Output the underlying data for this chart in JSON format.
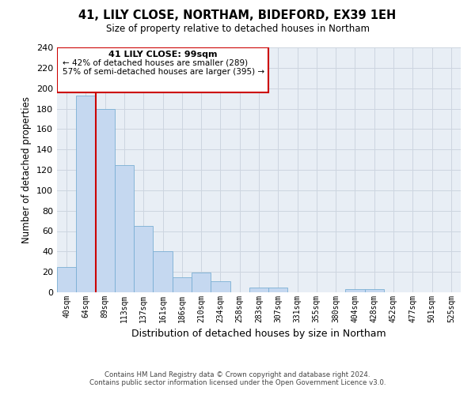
{
  "title": "41, LILY CLOSE, NORTHAM, BIDEFORD, EX39 1EH",
  "subtitle": "Size of property relative to detached houses in Northam",
  "xlabel": "Distribution of detached houses by size in Northam",
  "ylabel": "Number of detached properties",
  "bin_labels": [
    "40sqm",
    "64sqm",
    "89sqm",
    "113sqm",
    "137sqm",
    "161sqm",
    "186sqm",
    "210sqm",
    "234sqm",
    "258sqm",
    "283sqm",
    "307sqm",
    "331sqm",
    "355sqm",
    "380sqm",
    "404sqm",
    "428sqm",
    "452sqm",
    "477sqm",
    "501sqm",
    "525sqm"
  ],
  "bar_heights": [
    25,
    193,
    180,
    125,
    65,
    40,
    15,
    19,
    11,
    0,
    5,
    5,
    0,
    0,
    0,
    3,
    3,
    0,
    0,
    0,
    0
  ],
  "bar_color": "#c5d8f0",
  "bar_edge_color": "#7aafd4",
  "vline_x_index": 2,
  "vline_color": "#cc0000",
  "ylim": [
    0,
    240
  ],
  "yticks": [
    0,
    20,
    40,
    60,
    80,
    100,
    120,
    140,
    160,
    180,
    200,
    220,
    240
  ],
  "annotation_title": "41 LILY CLOSE: 99sqm",
  "annotation_line1": "← 42% of detached houses are smaller (289)",
  "annotation_line2": "57% of semi-detached houses are larger (395) →",
  "annotation_box_color": "#ffffff",
  "annotation_box_edge": "#cc0000",
  "footer_line1": "Contains HM Land Registry data © Crown copyright and database right 2024.",
  "footer_line2": "Contains public sector information licensed under the Open Government Licence v3.0.",
  "background_color": "#ffffff",
  "grid_color": "#cdd5e0"
}
